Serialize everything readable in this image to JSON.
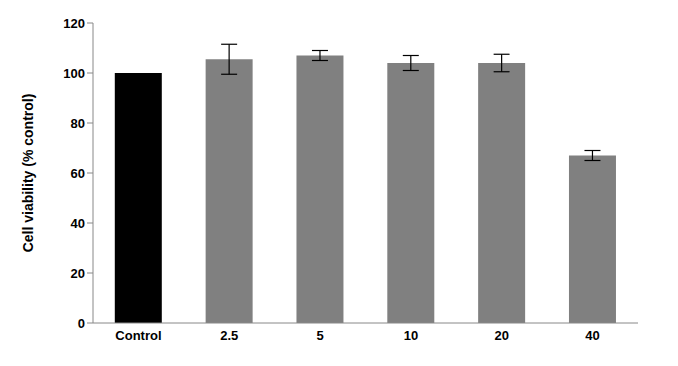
{
  "chart_data": {
    "type": "bar",
    "y_label": "Cell viability (% control)",
    "categories": [
      "Control",
      "2.5",
      "5",
      "10",
      "20",
      "40"
    ],
    "values": [
      100,
      105.5,
      107,
      104,
      104,
      67
    ],
    "errors": [
      0,
      6,
      2,
      3,
      3.5,
      2
    ],
    "colors": [
      "#000000",
      "#808080",
      "#808080",
      "#808080",
      "#808080",
      "#808080"
    ],
    "ylim": [
      0,
      120
    ],
    "yticks": [
      0,
      20,
      40,
      60,
      80,
      100,
      120
    ],
    "grid": false
  }
}
